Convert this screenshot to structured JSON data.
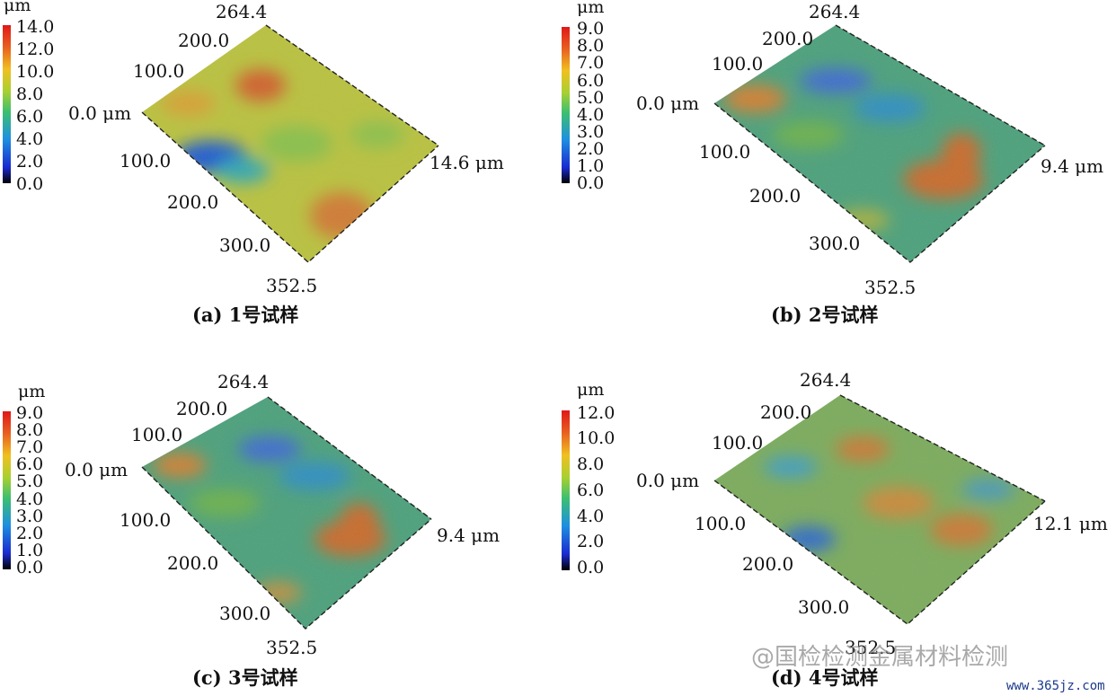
{
  "figure": {
    "panels": [
      {
        "id": "a",
        "caption": {
          "letter": "(a)",
          "num": "1",
          "text": "号试样"
        },
        "colorbar": {
          "unit": "μm",
          "ticks": [
            "14.0",
            "12.0",
            "10.0",
            "8.0",
            "6.0",
            "4.0",
            "2.0",
            "0.0"
          ]
        },
        "axis": {
          "y_ticks": [
            "264.4",
            "200.0",
            "100.0",
            "0.0 μm"
          ],
          "x_ticks": [
            "100.0",
            "200.0",
            "300.0",
            "352.5"
          ],
          "z_max": "14.6 μm"
        }
      },
      {
        "id": "b",
        "caption": {
          "letter": "(b)",
          "num": "2",
          "text": "号试样"
        },
        "colorbar": {
          "unit": "μm",
          "ticks": [
            "9.0",
            "8.0",
            "7.0",
            "6.0",
            "5.0",
            "4.0",
            "3.0",
            "2.0",
            "1.0",
            "0.0"
          ]
        },
        "axis": {
          "y_ticks": [
            "264.4",
            "200.0",
            "100.0",
            "0.0 μm"
          ],
          "x_ticks": [
            "100.0",
            "200.0",
            "300.0",
            "352.5"
          ],
          "z_max": "9.4 μm"
        }
      },
      {
        "id": "c",
        "caption": {
          "letter": "(c)",
          "num": "3",
          "text": "号试样"
        },
        "colorbar": {
          "unit": "μm",
          "ticks": [
            "9.0",
            "8.0",
            "7.0",
            "6.0",
            "5.0",
            "4.0",
            "3.0",
            "2.0",
            "1.0",
            "0.0"
          ]
        },
        "axis": {
          "y_ticks": [
            "264.4",
            "200.0",
            "100.0",
            "0.0 μm"
          ],
          "x_ticks": [
            "100.0",
            "200.0",
            "300.0",
            "352.5"
          ],
          "z_max": "9.4 μm"
        }
      },
      {
        "id": "d",
        "caption": {
          "letter": "(d)",
          "num": "4",
          "text": "号试样"
        },
        "colorbar": {
          "unit": "μm",
          "ticks": [
            "12.0",
            "10.0",
            "8.0",
            "6.0",
            "4.0",
            "2.0",
            "0.0"
          ]
        },
        "axis": {
          "y_ticks": [
            "264.4",
            "200.0",
            "100.0",
            "0.0 μm"
          ],
          "x_ticks": [
            "100.0",
            "200.0",
            "300.0",
            "352.5"
          ],
          "z_max": "12.1 μm"
        }
      }
    ],
    "watermark": "@国检检测金属材料检测",
    "site": "www.365jz.com"
  }
}
